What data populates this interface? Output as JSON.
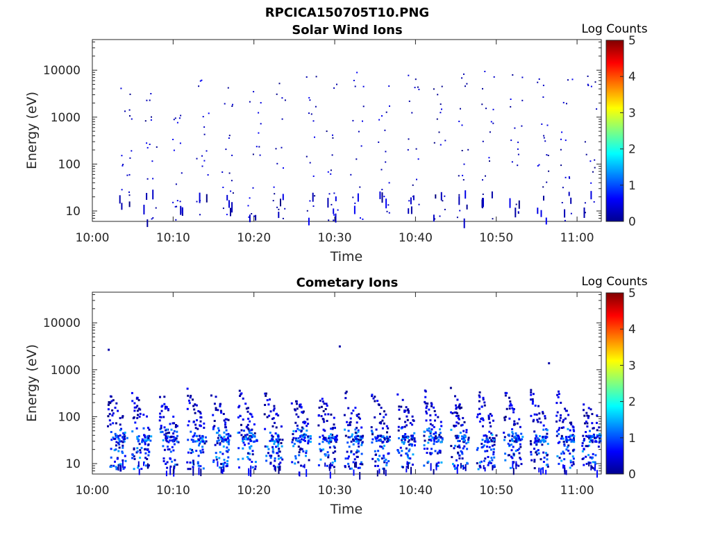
{
  "figure": {
    "title": "RPCICA150705T10.PNG"
  },
  "chart_data": [
    {
      "type": "heatmap",
      "title": "Solar Wind Ions",
      "xlabel": "Time",
      "ylabel": "Energy (eV)",
      "x_ticks": [
        "10:00",
        "10:10",
        "10:20",
        "10:30",
        "10:40",
        "10:50",
        "11:00"
      ],
      "x_range_minutes": [
        0,
        63
      ],
      "y_scale": "log",
      "y_ticks": [
        "10",
        "100",
        "1000",
        "10000"
      ],
      "y_range": [
        6,
        45000
      ],
      "colorbar": {
        "label": "Log Counts",
        "range": [
          0,
          5
        ],
        "ticks": [
          "0",
          "1",
          "2",
          "3",
          "4",
          "5"
        ],
        "colormap": "jet"
      },
      "grid": false,
      "pattern": {
        "cycle_starts_min": [
          3.2,
          6.3,
          9.7,
          12.8,
          15.9,
          19.2,
          22.3,
          26.1,
          28.9,
          31.9,
          35.2,
          39.0,
          42.1,
          45.0,
          48.1,
          51.6,
          54.9,
          57.8,
          60.8
        ],
        "style": "sparse-dispersed",
        "level_range": [
          0.0,
          0.6
        ]
      }
    },
    {
      "type": "heatmap",
      "title": "Cometary Ions",
      "xlabel": "Time",
      "ylabel": "Energy (eV)",
      "x_ticks": [
        "10:00",
        "10:10",
        "10:20",
        "10:30",
        "10:40",
        "10:50",
        "11:00"
      ],
      "x_range_minutes": [
        0,
        63
      ],
      "y_scale": "log",
      "y_ticks": [
        "10",
        "100",
        "1000",
        "10000"
      ],
      "y_range": [
        6,
        45000
      ],
      "colorbar": {
        "label": "Log Counts",
        "range": [
          0,
          5
        ],
        "ticks": [
          "0",
          "1",
          "2",
          "3",
          "4",
          "5"
        ],
        "colormap": "jet"
      },
      "grid": false,
      "pattern": {
        "cycle_starts_min": [
          1.8,
          4.8,
          8.2,
          11.6,
          14.6,
          17.9,
          21.2,
          24.5,
          27.8,
          31.1,
          34.4,
          37.6,
          40.9,
          44.2,
          47.5,
          50.8,
          54.1,
          57.3,
          60.5
        ],
        "style": "dense-dispersed",
        "level_range": [
          0.0,
          1.5
        ],
        "isolated_points": [
          [
            1.9,
            2800
          ],
          [
            30.5,
            3300
          ],
          [
            56.4,
            1450
          ]
        ]
      }
    }
  ]
}
